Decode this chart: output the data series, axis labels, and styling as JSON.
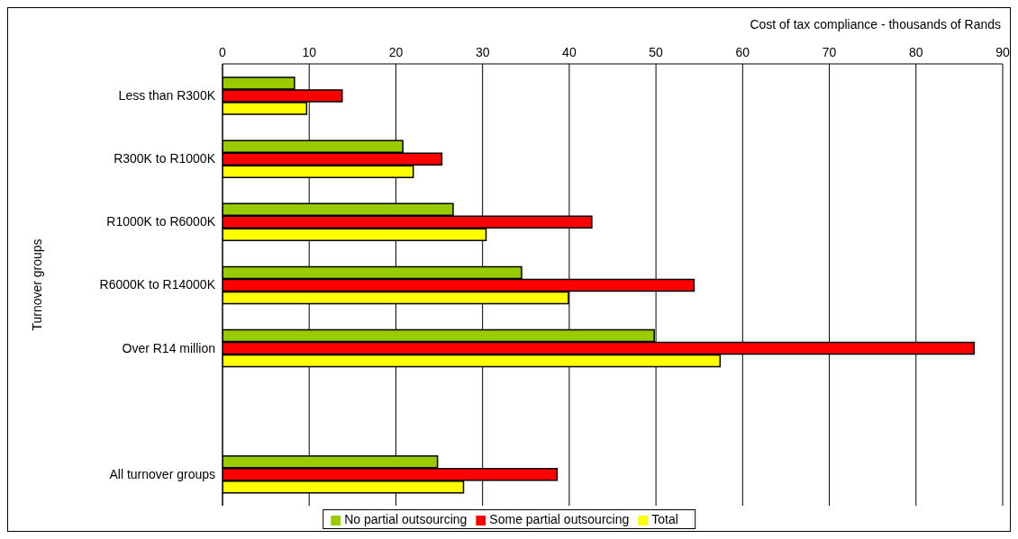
{
  "chart_data": {
    "type": "bar",
    "orientation": "horizontal",
    "xlabel": "Cost of tax compliance - thousands of Rands",
    "ylabel": "Turnover groups",
    "categories": [
      "Less than R300K",
      "R300K to R1000K",
      "R1000K to R6000K",
      "R6000K to R14000K",
      "Over R14 million",
      null,
      "All turnover groups"
    ],
    "series": [
      {
        "name": "No partial outsourcing",
        "color": "#99cc00",
        "values": [
          8.3,
          20.8,
          26.6,
          34.5,
          49.8,
          null,
          24.8
        ]
      },
      {
        "name": "Some partial outsourcing",
        "color": "#ff0000",
        "values": [
          13.8,
          25.3,
          42.6,
          54.4,
          86.7,
          null,
          38.6
        ]
      },
      {
        "name": "Total",
        "color": "#ffff00",
        "values": [
          9.7,
          22.0,
          30.4,
          39.9,
          57.4,
          null,
          27.8
        ]
      }
    ],
    "xlim": [
      0,
      90
    ],
    "xticks": [
      0,
      10,
      20,
      30,
      40,
      50,
      60,
      70,
      80,
      90
    ],
    "grid": "x",
    "legend": "bottom"
  }
}
